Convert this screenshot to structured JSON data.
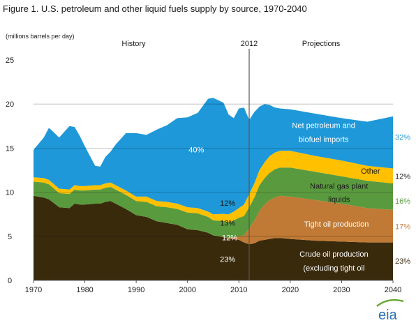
{
  "chart_data": {
    "type": "area",
    "title": "Figure 1. U.S. petroleum and other liquid fuels supply by source, 1970-2040",
    "units": "(millions barrels per day)",
    "xlim": [
      1970,
      2040
    ],
    "ylim": [
      0,
      25
    ],
    "x_ticks": [
      "1970",
      "1980",
      "1990",
      "2000",
      "2010",
      "2020",
      "2030",
      "2040"
    ],
    "y_ticks": [
      "0",
      "5",
      "10",
      "15",
      "20",
      "25"
    ],
    "divider_year": 2012,
    "section_labels": {
      "divider": "2012",
      "history": "History",
      "projections": "Projections"
    },
    "x": [
      1970,
      1972,
      1973,
      1975,
      1977,
      1978,
      1979,
      1980,
      1982,
      1983,
      1984,
      1985,
      1986,
      1988,
      1990,
      1992,
      1994,
      1996,
      1998,
      2000,
      2002,
      2004,
      2005,
      2007,
      2008,
      2009,
      2010,
      2011,
      2012,
      2013,
      2014,
      2015,
      2016,
      2017,
      2018,
      2020,
      2025,
      2030,
      2035,
      2040
    ],
    "series": [
      {
        "name": "Crude oil production (excluding tight oil",
        "color": "#3a2a0c",
        "label_color": "#ffffff",
        "values": [
          9.6,
          9.4,
          9.2,
          8.3,
          8.2,
          8.7,
          8.6,
          8.6,
          8.7,
          8.7,
          8.9,
          9.0,
          8.7,
          8.1,
          7.4,
          7.2,
          6.7,
          6.5,
          6.3,
          5.8,
          5.7,
          5.4,
          5.1,
          4.9,
          4.7,
          4.7,
          4.6,
          4.3,
          4.1,
          4.2,
          4.5,
          4.6,
          4.7,
          4.8,
          4.8,
          4.7,
          4.5,
          4.4,
          4.3,
          4.3
        ],
        "share_history": "23%",
        "share_2040": "23%"
      },
      {
        "name": "Tight oil production",
        "color": "#c07a35",
        "label_color": "#ffffff",
        "values": [
          0,
          0,
          0,
          0,
          0,
          0,
          0,
          0,
          0,
          0,
          0,
          0,
          0,
          0,
          0,
          0,
          0,
          0,
          0,
          0,
          0,
          0,
          0,
          0.05,
          0.1,
          0.2,
          0.4,
          0.8,
          1.8,
          2.6,
          3.4,
          4.0,
          4.4,
          4.6,
          4.8,
          4.8,
          4.6,
          4.3,
          3.9,
          3.7
        ],
        "share_history": "12%",
        "share_2040": "17%"
      },
      {
        "name": "Natural gas plant liquids",
        "color": "#5a9a3e",
        "label_color": "#1a1a1a",
        "values": [
          1.6,
          1.7,
          1.7,
          1.6,
          1.6,
          1.6,
          1.6,
          1.6,
          1.6,
          1.6,
          1.6,
          1.6,
          1.6,
          1.6,
          1.6,
          1.7,
          1.7,
          1.8,
          1.8,
          1.9,
          1.9,
          1.8,
          1.7,
          1.8,
          1.8,
          1.9,
          2.1,
          2.2,
          2.4,
          2.6,
          2.9,
          3.0,
          3.1,
          3.2,
          3.2,
          3.3,
          3.2,
          3.1,
          3.1,
          3.0
        ],
        "share_history": "13%",
        "share_2040": "16%"
      },
      {
        "name": "Other",
        "color": "#ffc000",
        "label_color": "#1a1a1a",
        "values": [
          0.5,
          0.5,
          0.5,
          0.5,
          0.5,
          0.5,
          0.5,
          0.5,
          0.5,
          0.5,
          0.5,
          0.5,
          0.5,
          0.5,
          0.5,
          0.6,
          0.6,
          0.6,
          0.6,
          0.6,
          0.6,
          0.6,
          0.7,
          0.8,
          0.9,
          1.0,
          1.1,
          1.3,
          1.5,
          1.6,
          1.7,
          1.8,
          1.9,
          1.9,
          1.9,
          1.9,
          1.8,
          1.8,
          1.7,
          1.7
        ],
        "share_history": "12%",
        "share_2040": "12%"
      },
      {
        "name": "Net petroleum and biofuel imports",
        "color": "#1e98d8",
        "label_color": "#ffffff",
        "values": [
          3.1,
          4.6,
          5.9,
          5.8,
          7.2,
          6.6,
          5.7,
          4.5,
          2.2,
          2.1,
          3.0,
          3.5,
          4.6,
          6.5,
          7.2,
          7.0,
          8.1,
          8.7,
          9.7,
          10.2,
          10.8,
          12.8,
          13.2,
          12.6,
          11.3,
          10.6,
          11.3,
          11.0,
          8.4,
          8.1,
          7.2,
          6.6,
          5.8,
          5.1,
          4.8,
          4.7,
          4.8,
          4.8,
          5.0,
          5.9
        ],
        "share_history": "40%",
        "share_2040": "32%"
      }
    ],
    "series_labels": [
      [
        "Net petroleum and",
        "biofuel imports"
      ],
      [
        "Other"
      ],
      [
        "Natural gas plant",
        "liquids"
      ],
      [
        "Tight oil production"
      ],
      [
        "Crude oil production",
        "(excluding tight oil"
      ]
    ],
    "share_2040_colors": [
      "#3a2a0c",
      "#c07a35",
      "#5a9a3e",
      "#1a1a1a",
      "#1e98d8"
    ]
  },
  "logo": {
    "text": "eia"
  }
}
